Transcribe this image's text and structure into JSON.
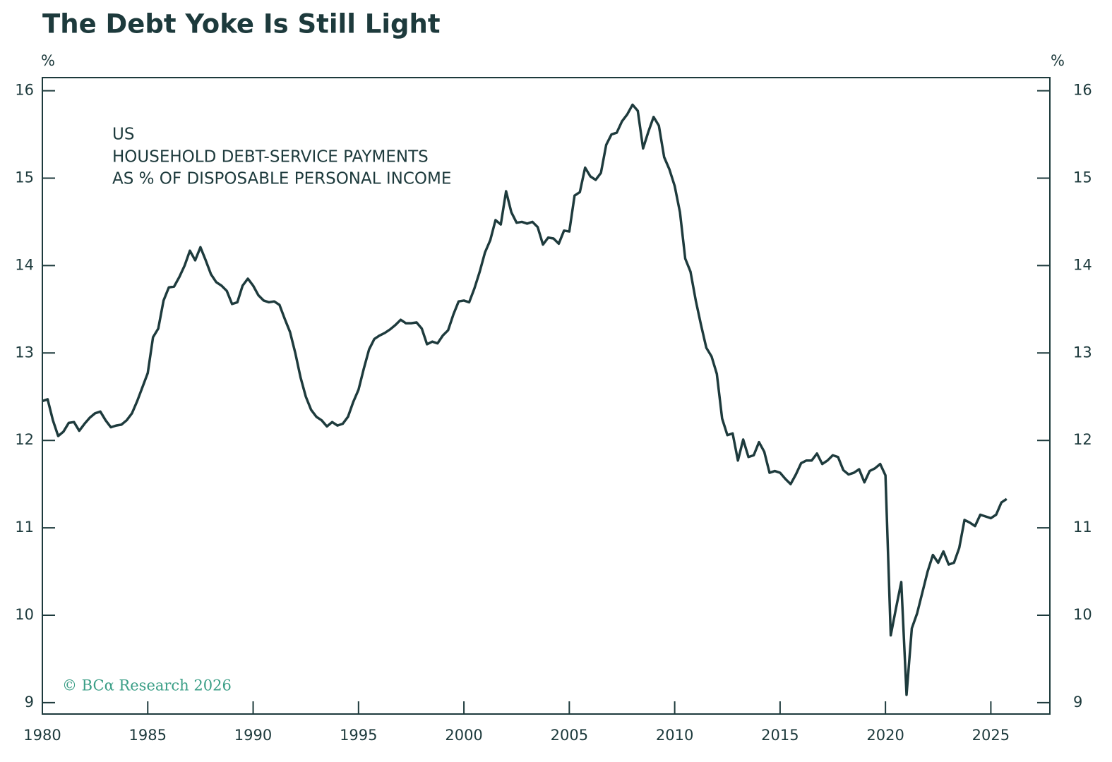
{
  "chart_data": {
    "type": "line",
    "title": "The Debt Yoke Is Still Light",
    "y_unit": "%",
    "y2_unit": "%",
    "annotation": [
      "US",
      "HOUSEHOLD DEBT-SERVICE PAYMENTS",
      "AS % OF DISPOSABLE PERSONAL INCOME"
    ],
    "credit": "© BCα Research 2026",
    "xlim": [
      1980,
      2027.8
    ],
    "xticks": [
      1980,
      1985,
      1990,
      1995,
      2000,
      2005,
      2010,
      2015,
      2020,
      2025
    ],
    "ylim": [
      8.87,
      16.15
    ],
    "yticks": [
      9,
      10,
      11,
      12,
      13,
      14,
      15,
      16
    ],
    "y2lim": [
      8.87,
      16.15
    ],
    "y2ticks": [
      9,
      10,
      11,
      12,
      13,
      14,
      15,
      16
    ],
    "color": "#1e3b3d",
    "x": [
      1980,
      1980.25,
      1980.5,
      1980.75,
      1981,
      1981.25,
      1981.5,
      1981.75,
      1982,
      1982.25,
      1982.5,
      1982.75,
      1983,
      1983.25,
      1983.5,
      1983.75,
      1984,
      1984.25,
      1984.5,
      1984.75,
      1985,
      1985.25,
      1985.5,
      1985.75,
      1986,
      1986.25,
      1986.5,
      1986.75,
      1987,
      1987.25,
      1987.5,
      1987.75,
      1988,
      1988.25,
      1988.5,
      1988.75,
      1989,
      1989.25,
      1989.5,
      1989.75,
      1990,
      1990.25,
      1990.5,
      1990.75,
      1991,
      1991.25,
      1991.5,
      1991.75,
      1992,
      1992.25,
      1992.5,
      1992.75,
      1993,
      1993.25,
      1993.5,
      1993.75,
      1994,
      1994.25,
      1994.5,
      1994.75,
      1995,
      1995.25,
      1995.5,
      1995.75,
      1996,
      1996.25,
      1996.5,
      1996.75,
      1997,
      1997.25,
      1997.5,
      1997.75,
      1998,
      1998.25,
      1998.5,
      1998.75,
      1999,
      1999.25,
      1999.5,
      1999.75,
      2000,
      2000.25,
      2000.5,
      2000.75,
      2001,
      2001.25,
      2001.5,
      2001.75,
      2002,
      2002.25,
      2002.5,
      2002.75,
      2003,
      2003.25,
      2003.5,
      2003.75,
      2004,
      2004.25,
      2004.5,
      2004.75,
      2005,
      2005.25,
      2005.5,
      2005.75,
      2006,
      2006.25,
      2006.5,
      2006.75,
      2007,
      2007.25,
      2007.5,
      2007.75,
      2008,
      2008.25,
      2008.5,
      2008.75,
      2009,
      2009.25,
      2009.5,
      2009.75,
      2010,
      2010.25,
      2010.5,
      2010.75,
      2011,
      2011.25,
      2011.5,
      2011.75,
      2012,
      2012.25,
      2012.5,
      2012.75,
      2013,
      2013.25,
      2013.5,
      2013.75,
      2014,
      2014.25,
      2014.5,
      2014.75,
      2015,
      2015.25,
      2015.5,
      2015.75,
      2016,
      2016.25,
      2016.5,
      2016.75,
      2017,
      2017.25,
      2017.5,
      2017.75,
      2018,
      2018.25,
      2018.5,
      2018.75,
      2019,
      2019.25,
      2019.5,
      2019.75,
      2020,
      2020.25,
      2020.5,
      2020.75,
      2021,
      2021.25,
      2021.5,
      2021.75,
      2022,
      2022.25,
      2022.5,
      2022.75,
      2023,
      2023.25,
      2023.5,
      2023.75,
      2024,
      2024.25,
      2024.5,
      2024.75,
      2025,
      2025.25,
      2025.5,
      2025.75
    ],
    "values": [
      12.45,
      12.47,
      12.23,
      12.05,
      12.1,
      12.2,
      12.21,
      12.11,
      12.19,
      12.26,
      12.31,
      12.33,
      12.23,
      12.15,
      12.17,
      12.18,
      12.23,
      12.31,
      12.45,
      12.61,
      12.77,
      13.18,
      13.28,
      13.6,
      13.75,
      13.76,
      13.87,
      14.0,
      14.17,
      14.06,
      14.21,
      14.06,
      13.9,
      13.81,
      13.77,
      13.71,
      13.56,
      13.58,
      13.77,
      13.85,
      13.77,
      13.66,
      13.6,
      13.58,
      13.59,
      13.55,
      13.39,
      13.24,
      13.0,
      12.72,
      12.5,
      12.35,
      12.27,
      12.23,
      12.16,
      12.21,
      12.17,
      12.19,
      12.27,
      12.44,
      12.58,
      12.82,
      13.04,
      13.16,
      13.2,
      13.23,
      13.27,
      13.32,
      13.38,
      13.34,
      13.34,
      13.35,
      13.28,
      13.1,
      13.13,
      13.11,
      13.2,
      13.26,
      13.44,
      13.59,
      13.6,
      13.58,
      13.74,
      13.93,
      14.15,
      14.29,
      14.52,
      14.47,
      14.85,
      14.61,
      14.49,
      14.5,
      14.48,
      14.5,
      14.44,
      14.24,
      14.32,
      14.31,
      14.25,
      14.4,
      14.39,
      14.8,
      14.84,
      15.12,
      15.02,
      14.98,
      15.06,
      15.38,
      15.5,
      15.52,
      15.65,
      15.73,
      15.84,
      15.77,
      15.34,
      15.53,
      15.7,
      15.6,
      15.24,
      15.1,
      14.91,
      14.61,
      14.08,
      13.93,
      13.6,
      13.32,
      13.06,
      12.96,
      12.76,
      12.25,
      12.06,
      12.08,
      11.77,
      12.01,
      11.81,
      11.83,
      11.98,
      11.87,
      11.63,
      11.65,
      11.63,
      11.56,
      11.5,
      11.61,
      11.74,
      11.77,
      11.77,
      11.85,
      11.73,
      11.77,
      11.83,
      11.81,
      11.66,
      11.61,
      11.63,
      11.67,
      11.52,
      11.65,
      11.68,
      11.73,
      11.6,
      9.77,
      10.08,
      10.38,
      9.09,
      9.85,
      10.02,
      10.26,
      10.5,
      10.69,
      10.6,
      10.73,
      10.58,
      10.6,
      10.77,
      11.09,
      11.06,
      11.02,
      11.15,
      11.13,
      11.11,
      11.15,
      11.29,
      11.33
    ]
  }
}
